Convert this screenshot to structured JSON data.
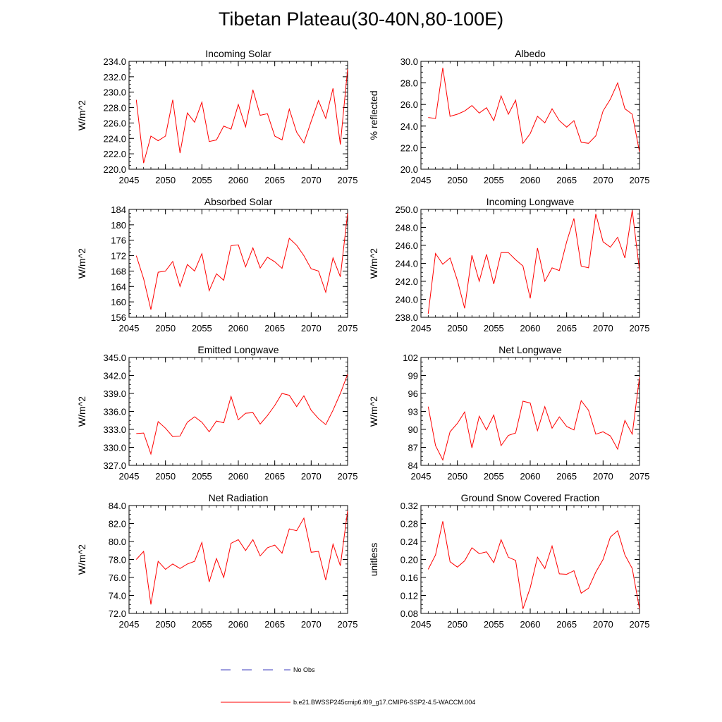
{
  "title": "Tibetan Plateau(30-40N,80-100E)",
  "colors": {
    "series": "#ff0000",
    "obs": "#3b3bbf",
    "axis": "#000000"
  },
  "legend": [
    {
      "label": "No Obs",
      "style": "dashed",
      "color": "#3b3bbf"
    },
    {
      "label": "b.e21.BWSSP245cmip6.f09_g17.CMIP6-SSP2-4.5-WACCM.004",
      "style": "solid",
      "color": "#ff0000"
    }
  ],
  "chart_data": [
    {
      "type": "line",
      "title": "Incoming Solar",
      "xlabel": "",
      "ylabel": "W/m^2",
      "xlim": [
        2045,
        2075
      ],
      "ylim": [
        220,
        234
      ],
      "xticks": [
        2045,
        2050,
        2055,
        2060,
        2065,
        2070,
        2075
      ],
      "yticks": [
        220,
        222,
        224,
        226,
        228,
        230,
        232,
        234
      ],
      "ytick_labels": [
        "220.0",
        "222.0",
        "224.0",
        "226.0",
        "228.0",
        "230.0",
        "232.0",
        "234.0"
      ],
      "x": [
        2046,
        2047,
        2048,
        2049,
        2050,
        2051,
        2052,
        2053,
        2054,
        2055,
        2056,
        2057,
        2058,
        2059,
        2060,
        2061,
        2062,
        2063,
        2064,
        2065,
        2066,
        2067,
        2068,
        2069,
        2070,
        2071,
        2072,
        2073,
        2074,
        2075
      ],
      "values": [
        229.0,
        220.8,
        224.3,
        223.7,
        224.3,
        229.0,
        222.1,
        227.3,
        226.1,
        228.7,
        223.6,
        223.8,
        225.6,
        225.2,
        228.4,
        225.5,
        230.3,
        227.0,
        227.2,
        224.3,
        223.8,
        227.8,
        224.8,
        223.4,
        226.2,
        228.9,
        226.6,
        230.5,
        223.2,
        233.0
      ]
    },
    {
      "type": "line",
      "title": "Albedo",
      "xlabel": "",
      "ylabel": "% reflected",
      "xlim": [
        2045,
        2075
      ],
      "ylim": [
        20,
        30
      ],
      "xticks": [
        2045,
        2050,
        2055,
        2060,
        2065,
        2070,
        2075
      ],
      "yticks": [
        20,
        22,
        24,
        26,
        28,
        30
      ],
      "ytick_labels": [
        "20.0",
        "22.0",
        "24.0",
        "26.0",
        "28.0",
        "30.0"
      ],
      "x": [
        2046,
        2047,
        2048,
        2049,
        2050,
        2051,
        2052,
        2053,
        2054,
        2055,
        2056,
        2057,
        2058,
        2059,
        2060,
        2061,
        2062,
        2063,
        2064,
        2065,
        2066,
        2067,
        2068,
        2069,
        2070,
        2071,
        2072,
        2073,
        2074,
        2075
      ],
      "values": [
        24.8,
        24.7,
        29.4,
        24.9,
        25.1,
        25.4,
        25.9,
        25.2,
        25.7,
        24.5,
        26.8,
        25.1,
        26.4,
        22.4,
        23.3,
        24.9,
        24.3,
        25.6,
        24.5,
        23.9,
        24.5,
        22.5,
        22.4,
        23.1,
        25.4,
        26.5,
        28.0,
        25.6,
        25.1,
        21.6
      ]
    },
    {
      "type": "line",
      "title": "Absorbed Solar",
      "xlabel": "",
      "ylabel": "W/m^2",
      "xlim": [
        2045,
        2075
      ],
      "ylim": [
        156,
        184
      ],
      "xticks": [
        2045,
        2050,
        2055,
        2060,
        2065,
        2070,
        2075
      ],
      "yticks": [
        156,
        160,
        164,
        168,
        172,
        176,
        180,
        184
      ],
      "ytick_labels": [
        "156",
        "160",
        "164",
        "168",
        "172",
        "176",
        "180",
        "184"
      ],
      "x": [
        2046,
        2047,
        2048,
        2049,
        2050,
        2051,
        2052,
        2053,
        2054,
        2055,
        2056,
        2057,
        2058,
        2059,
        2060,
        2061,
        2062,
        2063,
        2064,
        2065,
        2066,
        2067,
        2068,
        2069,
        2070,
        2071,
        2072,
        2073,
        2074,
        2075
      ],
      "values": [
        172.0,
        166.0,
        158.0,
        167.7,
        168.0,
        170.5,
        164.0,
        169.7,
        168.0,
        172.5,
        162.9,
        167.3,
        165.6,
        174.6,
        174.8,
        169.1,
        174.0,
        168.8,
        171.6,
        170.4,
        168.7,
        176.5,
        174.7,
        172.0,
        168.6,
        168.0,
        162.5,
        171.4,
        166.5,
        183.0
      ]
    },
    {
      "type": "line",
      "title": "Incoming Longwave",
      "xlabel": "",
      "ylabel": "W/m^2",
      "xlim": [
        2045,
        2075
      ],
      "ylim": [
        238,
        250
      ],
      "xticks": [
        2045,
        2050,
        2055,
        2060,
        2065,
        2070,
        2075
      ],
      "yticks": [
        238,
        240,
        242,
        244,
        246,
        248,
        250
      ],
      "ytick_labels": [
        "238.0",
        "240.0",
        "242.0",
        "244.0",
        "246.0",
        "248.0",
        "250.0"
      ],
      "x": [
        2046,
        2047,
        2048,
        2049,
        2050,
        2051,
        2052,
        2053,
        2054,
        2055,
        2056,
        2057,
        2058,
        2059,
        2060,
        2061,
        2062,
        2063,
        2064,
        2065,
        2066,
        2067,
        2068,
        2069,
        2070,
        2071,
        2072,
        2073,
        2074,
        2075
      ],
      "values": [
        238.4,
        245.1,
        243.9,
        244.6,
        242.1,
        239.0,
        244.9,
        242.0,
        245.0,
        241.7,
        245.2,
        245.2,
        244.4,
        243.7,
        240.1,
        245.7,
        242.0,
        243.5,
        243.2,
        246.4,
        249.0,
        243.7,
        243.5,
        249.5,
        246.4,
        245.8,
        246.9,
        244.6,
        249.9,
        243.2
      ]
    },
    {
      "type": "line",
      "title": "Emitted Longwave",
      "xlabel": "",
      "ylabel": "W/m^2",
      "xlim": [
        2045,
        2075
      ],
      "ylim": [
        327,
        345
      ],
      "xticks": [
        2045,
        2050,
        2055,
        2060,
        2065,
        2070,
        2075
      ],
      "yticks": [
        327,
        330,
        333,
        336,
        339,
        342,
        345
      ],
      "ytick_labels": [
        "327.0",
        "330.0",
        "333.0",
        "336.0",
        "339.0",
        "342.0",
        "345.0"
      ],
      "x": [
        2046,
        2047,
        2048,
        2049,
        2050,
        2051,
        2052,
        2053,
        2054,
        2055,
        2056,
        2057,
        2058,
        2059,
        2060,
        2061,
        2062,
        2063,
        2064,
        2065,
        2066,
        2067,
        2068,
        2069,
        2070,
        2071,
        2072,
        2073,
        2074,
        2075
      ],
      "values": [
        332.3,
        332.4,
        328.9,
        334.3,
        333.2,
        331.8,
        331.9,
        334.2,
        335.1,
        334.2,
        332.6,
        334.4,
        334.1,
        338.5,
        334.6,
        335.7,
        335.8,
        333.9,
        335.3,
        337.0,
        339.0,
        338.7,
        336.8,
        338.6,
        336.2,
        334.8,
        333.8,
        336.2,
        339.0,
        342.2
      ]
    },
    {
      "type": "line",
      "title": "Net Longwave",
      "xlabel": "",
      "ylabel": "W/m^2",
      "xlim": [
        2045,
        2075
      ],
      "ylim": [
        84,
        102
      ],
      "xticks": [
        2045,
        2050,
        2055,
        2060,
        2065,
        2070,
        2075
      ],
      "yticks": [
        84,
        87,
        90,
        93,
        96,
        99,
        102
      ],
      "ytick_labels": [
        "84",
        "87",
        "90",
        "93",
        "96",
        "99",
        "102"
      ],
      "x": [
        2046,
        2047,
        2048,
        2049,
        2050,
        2051,
        2052,
        2053,
        2054,
        2055,
        2056,
        2057,
        2058,
        2059,
        2060,
        2061,
        2062,
        2063,
        2064,
        2065,
        2066,
        2067,
        2068,
        2069,
        2070,
        2071,
        2072,
        2073,
        2074,
        2075
      ],
      "values": [
        93.8,
        87.3,
        84.9,
        89.6,
        91.0,
        92.9,
        86.9,
        92.2,
        89.9,
        92.4,
        87.3,
        89.0,
        89.4,
        94.7,
        94.4,
        89.8,
        93.8,
        90.2,
        92.1,
        90.5,
        89.9,
        94.8,
        93.2,
        89.2,
        89.6,
        88.9,
        86.7,
        91.5,
        89.2,
        98.7
      ]
    },
    {
      "type": "line",
      "title": "Net Radiation",
      "xlabel": "",
      "ylabel": "W/m^2",
      "xlim": [
        2045,
        2075
      ],
      "ylim": [
        72,
        84
      ],
      "xticks": [
        2045,
        2050,
        2055,
        2060,
        2065,
        2070,
        2075
      ],
      "yticks": [
        72,
        74,
        76,
        78,
        80,
        82,
        84
      ],
      "ytick_labels": [
        "72.0",
        "74.0",
        "76.0",
        "78.0",
        "80.0",
        "82.0",
        "84.0"
      ],
      "x": [
        2046,
        2047,
        2048,
        2049,
        2050,
        2051,
        2052,
        2053,
        2054,
        2055,
        2056,
        2057,
        2058,
        2059,
        2060,
        2061,
        2062,
        2063,
        2064,
        2065,
        2066,
        2067,
        2068,
        2069,
        2070,
        2071,
        2072,
        2073,
        2074,
        2075
      ],
      "values": [
        78.0,
        78.9,
        73.0,
        77.8,
        76.9,
        77.5,
        77.0,
        77.5,
        77.8,
        79.9,
        75.5,
        78.1,
        76.0,
        79.8,
        80.2,
        79.0,
        80.2,
        78.4,
        79.3,
        79.6,
        78.7,
        81.4,
        81.2,
        82.6,
        78.8,
        78.9,
        75.7,
        79.7,
        77.3,
        83.4
      ]
    },
    {
      "type": "line",
      "title": "Ground Snow Covered Fraction",
      "xlabel": "",
      "ylabel": "unitless",
      "xlim": [
        2045,
        2075
      ],
      "ylim": [
        0.08,
        0.32
      ],
      "xticks": [
        2045,
        2050,
        2055,
        2060,
        2065,
        2070,
        2075
      ],
      "yticks": [
        0.08,
        0.12,
        0.16,
        0.2,
        0.24,
        0.28,
        0.32
      ],
      "ytick_labels": [
        "0.08",
        "0.12",
        "0.16",
        "0.20",
        "0.24",
        "0.28",
        "0.32"
      ],
      "x": [
        2046,
        2047,
        2048,
        2049,
        2050,
        2051,
        2052,
        2053,
        2054,
        2055,
        2056,
        2057,
        2058,
        2059,
        2060,
        2061,
        2062,
        2063,
        2064,
        2065,
        2066,
        2067,
        2068,
        2069,
        2070,
        2071,
        2072,
        2073,
        2074,
        2075
      ],
      "values": [
        0.178,
        0.21,
        0.285,
        0.195,
        0.183,
        0.197,
        0.226,
        0.213,
        0.217,
        0.193,
        0.244,
        0.205,
        0.198,
        0.09,
        0.137,
        0.205,
        0.18,
        0.23,
        0.168,
        0.167,
        0.175,
        0.125,
        0.136,
        0.172,
        0.2,
        0.25,
        0.264,
        0.21,
        0.18,
        0.09
      ]
    }
  ]
}
